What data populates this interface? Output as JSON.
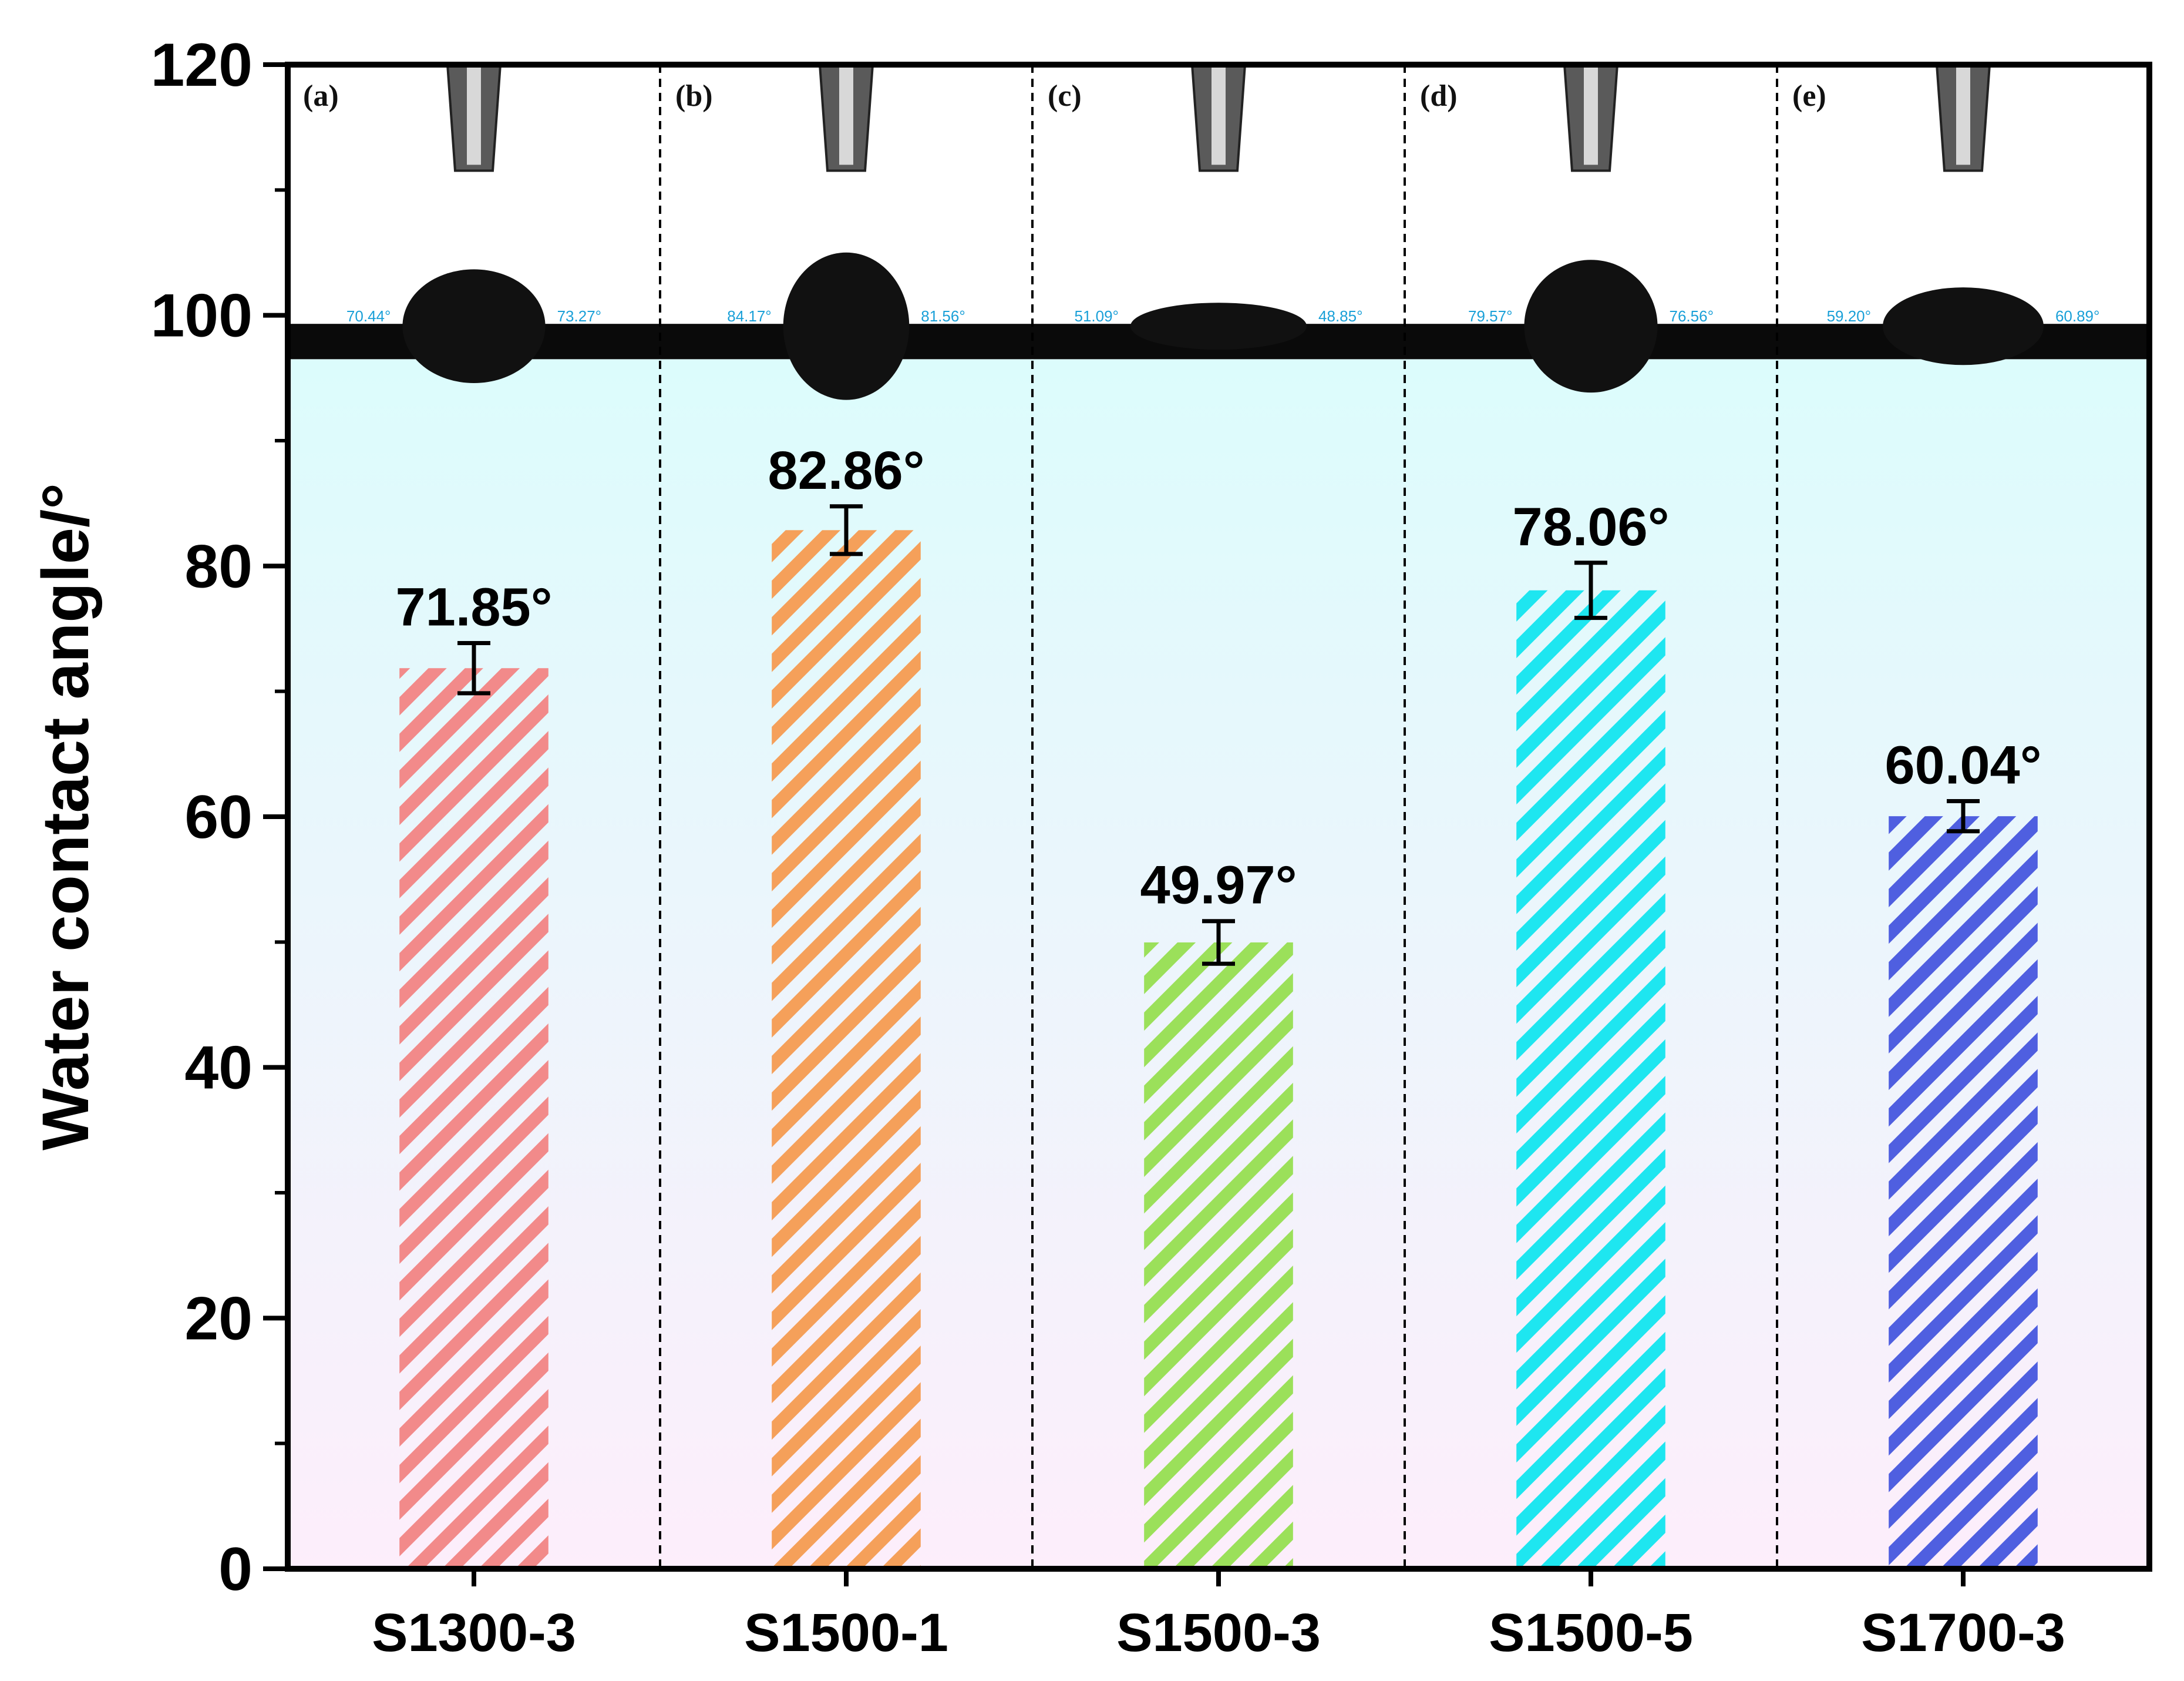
{
  "chart_data": {
    "type": "bar",
    "ylabel": "Water contact angle/°",
    "ylim": [
      0,
      120
    ],
    "yticks": [
      0,
      20,
      40,
      60,
      80,
      100,
      120
    ],
    "categories": [
      "S1300-3",
      "S1500-1",
      "S1500-3",
      "S1500-5",
      "S1700-3"
    ],
    "values": [
      71.85,
      82.86,
      49.97,
      78.06,
      60.04
    ],
    "errors": [
      2.0,
      1.9,
      1.7,
      2.2,
      1.2
    ],
    "value_labels": [
      "71.85°",
      "82.86°",
      "49.97°",
      "78.06°",
      "60.04°"
    ],
    "bar_colors": [
      "#f28a8a",
      "#f5a05a",
      "#9be05a",
      "#1ee6f0",
      "#4f5fe0"
    ],
    "fill_pattern": "diagonal-hatch",
    "background_gradient": [
      "#dcfcfc",
      "#fdeefb"
    ],
    "grid": false,
    "separators": "dashed vertical lines between categories"
  },
  "photos": [
    {
      "panel": "(a)",
      "left_angle": "70.44°",
      "right_angle": "73.27°"
    },
    {
      "panel": "(b)",
      "left_angle": "84.17°",
      "right_angle": "81.56°"
    },
    {
      "panel": "(c)",
      "left_angle": "51.09°",
      "right_angle": "48.85°"
    },
    {
      "panel": "(d)",
      "left_angle": "79.57°",
      "right_angle": "76.56°"
    },
    {
      "panel": "(e)",
      "left_angle": "59.20°",
      "right_angle": "60.89°"
    }
  ],
  "colors": {
    "axis": "#000000",
    "angle_text": "#1aa0d8",
    "drop": "#111111",
    "substrate": "#0a0a0a"
  }
}
